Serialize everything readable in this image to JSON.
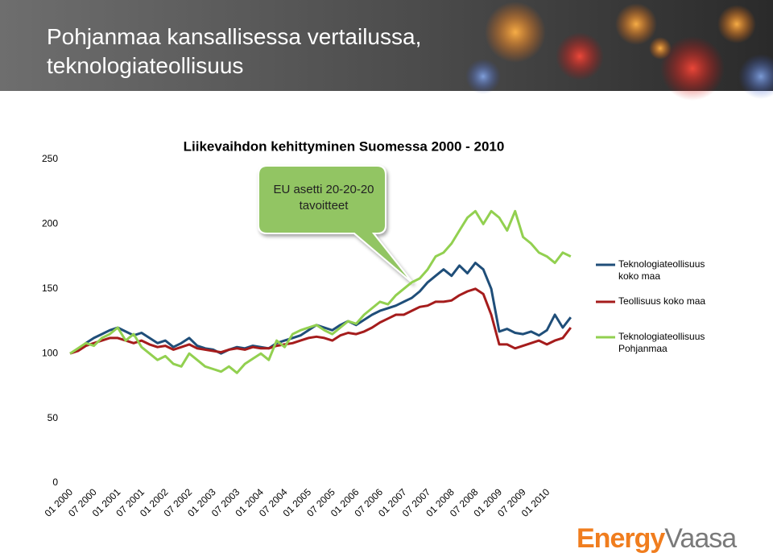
{
  "slide": {
    "title": "Pohjanmaa kansallisessa vertailussa, teknologiateollisuus",
    "logo": [
      "Energy",
      "Vaasa"
    ]
  },
  "chart_data": {
    "type": "line",
    "title": "Liikevaihdon kehittyminen Suomessa 2000 - 2010",
    "annotation": "EU asetti 20-20-20 tavoitteet",
    "categories": [
      "01 2000",
      null,
      null,
      "07 2000",
      null,
      null,
      "01 2001",
      null,
      null,
      "07 2001",
      null,
      null,
      "01 2002",
      null,
      null,
      "07 2002",
      null,
      null,
      "01 2003",
      null,
      null,
      "07 2003",
      null,
      null,
      "01 2004",
      null,
      null,
      "07 2004",
      null,
      null,
      "01 2005",
      null,
      null,
      "07 2005",
      null,
      null,
      "01 2006",
      null,
      null,
      "07 2006",
      null,
      null,
      "01 2007",
      null,
      null,
      "07 2007",
      null,
      null,
      "01 2008",
      null,
      null,
      "07 2008",
      null,
      null,
      "01 2009",
      null,
      null,
      "07 2009",
      null,
      null,
      "01 2010",
      null,
      null,
      null
    ],
    "ylim": [
      0,
      250
    ],
    "yticks": [
      0,
      50,
      100,
      150,
      200,
      250
    ],
    "grid": false,
    "series": [
      {
        "name": "Teknologiateollisuus koko maa",
        "color": "#1f4e79",
        "values": [
          100,
          103,
          108,
          112,
          115,
          118,
          120,
          117,
          114,
          116,
          112,
          108,
          110,
          105,
          108,
          112,
          106,
          104,
          103,
          100,
          103,
          105,
          104,
          106,
          105,
          104,
          108,
          110,
          112,
          114,
          118,
          122,
          120,
          118,
          122,
          125,
          122,
          126,
          130,
          133,
          135,
          137,
          140,
          143,
          148,
          155,
          160,
          165,
          160,
          168,
          162,
          170,
          165,
          150,
          117,
          119,
          116,
          115,
          117,
          114,
          118,
          130,
          120,
          128
        ]
      },
      {
        "name": "Teollisuus koko maa",
        "color": "#a51c1c",
        "values": [
          100,
          102,
          106,
          108,
          110,
          112,
          112,
          110,
          108,
          110,
          107,
          105,
          106,
          103,
          105,
          107,
          104,
          103,
          102,
          101,
          103,
          104,
          103,
          105,
          104,
          104,
          106,
          107,
          108,
          110,
          112,
          113,
          112,
          110,
          114,
          116,
          115,
          117,
          120,
          124,
          127,
          130,
          130,
          133,
          136,
          137,
          140,
          140,
          141,
          145,
          148,
          150,
          146,
          130,
          107,
          107,
          104,
          106,
          108,
          110,
          107,
          110,
          112,
          120
        ]
      },
      {
        "name": "Teknologiateollisuus Pohjanmaa",
        "color": "#92d050",
        "values": [
          100,
          104,
          108,
          106,
          112,
          115,
          120,
          110,
          115,
          105,
          100,
          95,
          98,
          92,
          90,
          100,
          95,
          90,
          88,
          86,
          90,
          85,
          92,
          96,
          100,
          95,
          110,
          105,
          115,
          118,
          120,
          122,
          118,
          115,
          120,
          125,
          123,
          130,
          135,
          140,
          138,
          145,
          150,
          155,
          158,
          165,
          175,
          178,
          185,
          195,
          205,
          210,
          200,
          210,
          205,
          195,
          210,
          190,
          185,
          178,
          175,
          170,
          178,
          175
        ]
      }
    ]
  }
}
